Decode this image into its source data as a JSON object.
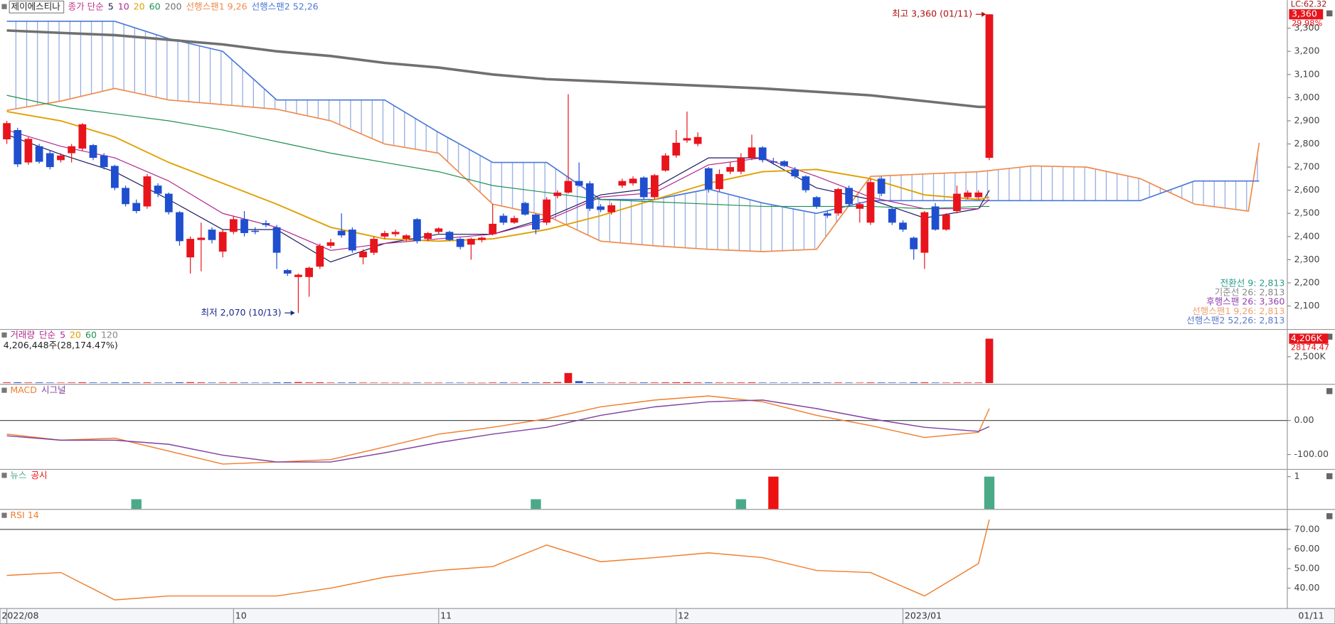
{
  "chart_data": [
    {
      "type": "candlestick",
      "title": "제이에스티나",
      "legend_label": "종가 단순",
      "xlim": [
        -0.63,
        118.6
      ],
      "ylim": [
        2006,
        3421
      ],
      "yticks": [
        {
          "value": 3300,
          "label": "3,300"
        },
        {
          "value": 3200,
          "label": "3,200"
        },
        {
          "value": 3100,
          "label": "3,100"
        },
        {
          "value": 3000,
          "label": "3,000"
        },
        {
          "value": 2900,
          "label": "2,900"
        },
        {
          "value": 2800,
          "label": "2,800"
        },
        {
          "value": 2700,
          "label": "2,700"
        },
        {
          "value": 2600,
          "label": "2,600"
        },
        {
          "value": 2500,
          "label": "2,500"
        },
        {
          "value": 2400,
          "label": "2,400"
        },
        {
          "value": 2300,
          "label": "2,300"
        },
        {
          "value": 2200,
          "label": "2,200"
        },
        {
          "value": 2100,
          "label": "2,100"
        }
      ],
      "xticks": [
        {
          "value": 0,
          "label": "2022/08"
        },
        {
          "value": 21,
          "label": "10"
        },
        {
          "value": 40,
          "label": "11"
        },
        {
          "value": 62,
          "label": "12"
        },
        {
          "value": 83,
          "label": "2023/01"
        }
      ],
      "last_date": "01/11",
      "up_color": "#e8141c",
      "down_color": "#1f4fcf",
      "open": [
        2820,
        2860,
        2720,
        2790,
        2760,
        2730,
        2760,
        2780,
        2795,
        2750,
        2705,
        2610,
        2545,
        2530,
        2620,
        2585,
        2505,
        2310,
        2385,
        2430,
        2335,
        2420,
        2475,
        2425,
        2458,
        2440,
        2255,
        2225,
        2225,
        2270,
        2360,
        2425,
        2430,
        2310,
        2330,
        2400,
        2410,
        2390,
        2475,
        2390,
        2420,
        2420,
        2390,
        2365,
        2385,
        2410,
        2490,
        2460,
        2545,
        2495,
        2460,
        2575,
        2590,
        2640,
        2630,
        2530,
        2505,
        2620,
        2630,
        2655,
        2570,
        2685,
        2750,
        2815,
        2800,
        2695,
        2605,
        2680,
        2680,
        2740,
        2785,
        2725,
        2725,
        2690,
        2660,
        2570,
        2500,
        2500,
        2610,
        2520,
        2460,
        2650,
        2520,
        2460,
        2395,
        2330,
        2530,
        2430,
        2510,
        2570,
        2570,
        2740
      ],
      "high": [
        2900,
        2870,
        2830,
        2800,
        2770,
        2760,
        2800,
        2890,
        2800,
        2760,
        2710,
        2620,
        2560,
        2670,
        2630,
        2590,
        2510,
        2400,
        2460,
        2440,
        2430,
        2490,
        2510,
        2440,
        2470,
        2450,
        2260,
        2240,
        2270,
        2370,
        2390,
        2500,
        2440,
        2345,
        2400,
        2425,
        2430,
        2410,
        2480,
        2420,
        2440,
        2425,
        2395,
        2395,
        2400,
        2540,
        2500,
        2490,
        2550,
        2500,
        2570,
        2600,
        3015,
        2720,
        2640,
        2540,
        2545,
        2650,
        2660,
        2660,
        2670,
        2760,
        2860,
        2940,
        2850,
        2700,
        2690,
        2720,
        2760,
        2840,
        2790,
        2740,
        2730,
        2700,
        2665,
        2575,
        2510,
        2610,
        2620,
        2550,
        2650,
        2660,
        2530,
        2470,
        2400,
        2510,
        2545,
        2500,
        2620,
        2600,
        2600,
        3360
      ],
      "low": [
        2800,
        2700,
        2710,
        2715,
        2690,
        2720,
        2720,
        2770,
        2730,
        2690,
        2600,
        2530,
        2500,
        2520,
        2570,
        2495,
        2360,
        2240,
        2250,
        2370,
        2310,
        2410,
        2400,
        2410,
        2440,
        2260,
        2230,
        2070,
        2140,
        2260,
        2350,
        2395,
        2330,
        2280,
        2320,
        2390,
        2400,
        2380,
        2370,
        2380,
        2410,
        2380,
        2345,
        2300,
        2375,
        2405,
        2450,
        2455,
        2490,
        2410,
        2450,
        2565,
        2585,
        2615,
        2510,
        2505,
        2495,
        2610,
        2620,
        2560,
        2560,
        2680,
        2740,
        2805,
        2790,
        2590,
        2595,
        2670,
        2670,
        2730,
        2720,
        2710,
        2700,
        2650,
        2590,
        2520,
        2480,
        2490,
        2530,
        2460,
        2450,
        2575,
        2450,
        2420,
        2300,
        2260,
        2425,
        2425,
        2500,
        2560,
        2560,
        2730
      ],
      "close": [
        2890,
        2712,
        2822,
        2723,
        2700,
        2750,
        2790,
        2885,
        2740,
        2700,
        2610,
        2540,
        2510,
        2660,
        2585,
        2505,
        2380,
        2390,
        2395,
        2385,
        2420,
        2475,
        2415,
        2420,
        2450,
        2330,
        2240,
        2235,
        2265,
        2360,
        2375,
        2405,
        2340,
        2335,
        2390,
        2415,
        2420,
        2405,
        2380,
        2415,
        2435,
        2385,
        2355,
        2390,
        2395,
        2455,
        2460,
        2480,
        2495,
        2430,
        2560,
        2590,
        2640,
        2620,
        2520,
        2515,
        2535,
        2640,
        2650,
        2570,
        2665,
        2750,
        2805,
        2825,
        2830,
        2605,
        2670,
        2700,
        2740,
        2785,
        2730,
        2720,
        2705,
        2660,
        2600,
        2530,
        2490,
        2605,
        2540,
        2540,
        2635,
        2585,
        2460,
        2430,
        2345,
        2505,
        2430,
        2495,
        2585,
        2590,
        2590,
        3360
      ],
      "overlays": [
        {
          "name": "5",
          "color": "#1a1a60",
          "line_width": 1,
          "x": [
            0,
            5,
            10,
            15,
            20,
            25,
            30,
            35,
            40,
            45,
            50,
            55,
            60,
            65,
            70,
            75,
            80,
            85,
            90,
            91
          ],
          "values": [
            2840,
            2755,
            2680,
            2560,
            2430,
            2430,
            2290,
            2370,
            2410,
            2410,
            2480,
            2580,
            2610,
            2740,
            2740,
            2610,
            2560,
            2480,
            2520,
            2600
          ]
        },
        {
          "name": "10",
          "color": "#b02890",
          "line_width": 1,
          "x": [
            0,
            5,
            10,
            15,
            20,
            25,
            30,
            35,
            40,
            45,
            50,
            55,
            60,
            65,
            70,
            75,
            80,
            85,
            90,
            91
          ],
          "values": [
            2860,
            2790,
            2740,
            2640,
            2500,
            2440,
            2340,
            2370,
            2390,
            2410,
            2470,
            2570,
            2590,
            2710,
            2740,
            2660,
            2570,
            2520,
            2520,
            2560
          ]
        },
        {
          "name": "20",
          "color": "#e0a000",
          "line_width": 1.6,
          "x": [
            0,
            5,
            10,
            15,
            20,
            25,
            30,
            35,
            40,
            45,
            50,
            55,
            60,
            65,
            70,
            75,
            80,
            85,
            90,
            91
          ],
          "values": [
            2940,
            2900,
            2830,
            2720,
            2630,
            2540,
            2440,
            2390,
            2380,
            2390,
            2430,
            2490,
            2560,
            2630,
            2680,
            2690,
            2650,
            2580,
            2560,
            2570
          ]
        },
        {
          "name": "60",
          "color": "#1e9050",
          "line_width": 1,
          "x": [
            0,
            5,
            10,
            15,
            20,
            25,
            30,
            35,
            40,
            45,
            50,
            55,
            60,
            65,
            70,
            75,
            80,
            85,
            90,
            91
          ],
          "values": [
            3010,
            2960,
            2930,
            2900,
            2860,
            2810,
            2760,
            2720,
            2680,
            2620,
            2590,
            2560,
            2550,
            2540,
            2530,
            2530,
            2530,
            2520,
            2530,
            2530
          ]
        },
        {
          "name": "200",
          "color": "#707070",
          "line_width": 3,
          "x": [
            0,
            5,
            10,
            15,
            20,
            25,
            30,
            35,
            40,
            45,
            50,
            55,
            60,
            65,
            70,
            75,
            80,
            85,
            90,
            91
          ],
          "values": [
            3290,
            3280,
            3270,
            3250,
            3230,
            3200,
            3180,
            3150,
            3130,
            3100,
            3080,
            3070,
            3060,
            3050,
            3040,
            3025,
            3010,
            2985,
            2960,
            2960
          ]
        }
      ],
      "spans": [
        {
          "name": "선행스팬1 9,26",
          "color": "#f08a4b",
          "x": [
            0,
            5,
            10,
            15,
            20,
            25,
            30,
            35,
            40,
            45,
            50,
            55,
            60,
            65,
            70,
            75,
            80,
            85,
            90,
            95,
            100,
            105,
            110,
            115,
            116
          ],
          "values": [
            2945,
            2985,
            3040,
            2990,
            2970,
            2950,
            2900,
            2800,
            2760,
            2540,
            2490,
            2380,
            2360,
            2345,
            2335,
            2345,
            2660,
            2670,
            2680,
            2705,
            2700,
            2650,
            2540,
            2510,
            2805
          ]
        },
        {
          "name": "선행스팬2 52,26",
          "color": "#4a78d8",
          "x": [
            0,
            5,
            10,
            15,
            20,
            25,
            30,
            35,
            40,
            45,
            50,
            55,
            60,
            65,
            70,
            75,
            80,
            85,
            90,
            95,
            100,
            105,
            110,
            115,
            116
          ],
          "values": [
            3330,
            3330,
            3330,
            3255,
            3200,
            2990,
            2990,
            2990,
            2850,
            2720,
            2720,
            2560,
            2560,
            2605,
            2545,
            2500,
            2555,
            2555,
            2555,
            2555,
            2555,
            2555,
            2640,
            2640,
            2640
          ]
        }
      ],
      "annotations": [
        {
          "text": "최고 3,360 (01/11)",
          "x": 91,
          "y": 3360
        },
        {
          "text": "최저 2,070 (10/13)",
          "x": 27,
          "y": 2070
        }
      ],
      "current": {
        "value": 3360,
        "label": "3,360"
      },
      "change_label": "29.98%",
      "lc_label": "LC:62.32",
      "info_labels": [
        {
          "text": "전환선 9: 2,813",
          "color": "#2a9a8a"
        },
        {
          "text": "기준선 26: 2,813",
          "color": "#888888"
        },
        {
          "text": "후행스팬 26: 3,360",
          "color": "#9040b0"
        },
        {
          "text": "선행스팬1 9,26: 2,813",
          "color": "#f0a070"
        },
        {
          "text": "선행스팬2 52,26: 2,813",
          "color": "#5a7ac8"
        }
      ]
    },
    {
      "type": "bar",
      "title": "거래량",
      "legend_label": "단순",
      "legend": [
        {
          "name": "5",
          "color": "#b02890"
        },
        {
          "name": "20",
          "color": "#e0a000"
        },
        {
          "name": "60",
          "color": "#1e9050"
        },
        {
          "name": "120",
          "color": "#888888"
        }
      ],
      "value_label": "4,206,448주(28,174.47%)",
      "values": [
        60,
        70,
        50,
        55,
        45,
        40,
        50,
        65,
        50,
        45,
        55,
        60,
        50,
        60,
        45,
        50,
        70,
        80,
        60,
        45,
        50,
        55,
        50,
        40,
        35,
        60,
        70,
        90,
        60,
        65,
        45,
        50,
        55,
        45,
        40,
        35,
        35,
        30,
        45,
        35,
        35,
        40,
        40,
        35,
        30,
        50,
        55,
        40,
        60,
        55,
        70,
        90,
        950,
        180,
        70,
        45,
        40,
        50,
        45,
        55,
        50,
        60,
        70,
        80,
        55,
        60,
        50,
        45,
        50,
        60,
        45,
        40,
        35,
        40,
        50,
        55,
        45,
        50,
        45,
        40,
        55,
        50,
        45,
        40,
        60,
        65,
        45,
        40,
        55,
        50,
        50,
        4206
      ],
      "ylim": [
        0,
        5000
      ],
      "yticks": [
        {
          "value": 2500,
          "label": "2,500K"
        }
      ],
      "current": {
        "value": 4206,
        "label": "4,206K"
      },
      "ratio_label": "28174.47"
    },
    {
      "type": "line",
      "title": "MACD",
      "series": [
        {
          "name": "MACD",
          "color": "#f07d2a",
          "x": [
            0,
            5,
            10,
            15,
            20,
            25,
            30,
            35,
            40,
            45,
            50,
            55,
            60,
            65,
            70,
            75,
            80,
            85,
            90,
            91
          ],
          "values": [
            -40,
            -58,
            -52,
            -90,
            -128,
            -122,
            -115,
            -78,
            -40,
            -20,
            5,
            40,
            60,
            72,
            55,
            15,
            -15,
            -50,
            -35,
            35
          ]
        },
        {
          "name": "시그널",
          "color": "#8040a0",
          "x": [
            0,
            5,
            10,
            15,
            20,
            25,
            30,
            35,
            40,
            45,
            50,
            55,
            60,
            65,
            70,
            75,
            80,
            85,
            90,
            91
          ],
          "values": [
            -45,
            -58,
            -58,
            -70,
            -102,
            -122,
            -122,
            -95,
            -65,
            -40,
            -20,
            15,
            40,
            55,
            60,
            35,
            5,
            -20,
            -32,
            -18
          ]
        }
      ],
      "ylim": [
        -142.5,
        105
      ],
      "yticks": [
        {
          "value": 0,
          "label": "0.00"
        },
        {
          "value": -100,
          "label": "-100.00"
        }
      ],
      "reference_line": 0
    },
    {
      "type": "event",
      "series": [
        {
          "name": "뉴스",
          "color": "#4aaa88",
          "x": [
            12,
            49,
            68,
            91
          ],
          "values": [
            0.3,
            0.3,
            0.3,
            1
          ]
        },
        {
          "name": "공시",
          "color": "#ee1111",
          "x": [
            71
          ],
          "values": [
            1
          ]
        }
      ],
      "ylim": [
        0,
        1.21
      ],
      "yticks": [
        1
      ]
    },
    {
      "type": "line",
      "series": [
        {
          "name": "RSI 14",
          "color": "#f07d2a",
          "x": [
            0,
            5,
            10,
            15,
            20,
            25,
            30,
            35,
            40,
            45,
            50,
            55,
            60,
            65,
            70,
            75,
            80,
            85,
            90,
            91
          ],
          "values": [
            46.5,
            48,
            34,
            36,
            36,
            36,
            40,
            45.6,
            49,
            51,
            62,
            53.5,
            55.6,
            58,
            55.6,
            49,
            48,
            36,
            52.6,
            75
          ]
        }
      ],
      "ylim": [
        29.6,
        80
      ],
      "yticks": [
        {
          "value": 70,
          "label": "70.00"
        },
        {
          "value": 60,
          "label": "60.00"
        },
        {
          "value": 50,
          "label": "50.00"
        },
        {
          "value": 40,
          "label": "40.00"
        }
      ],
      "reference_line": 70
    }
  ]
}
